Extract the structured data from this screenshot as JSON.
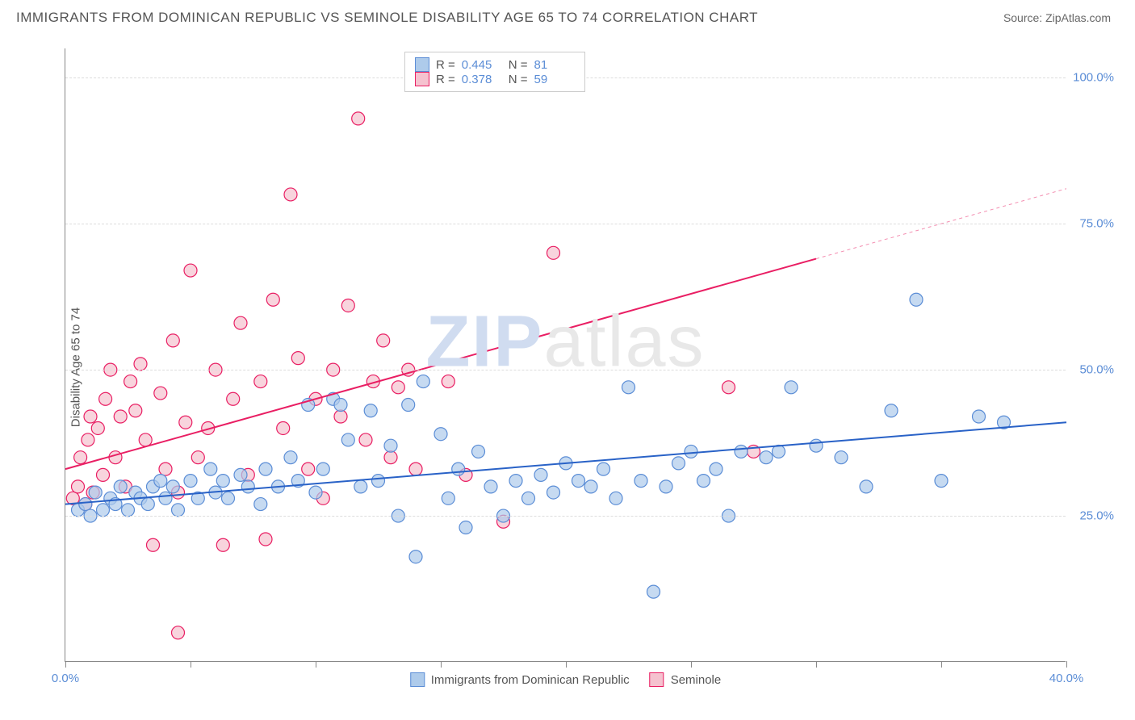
{
  "title": "IMMIGRANTS FROM DOMINICAN REPUBLIC VS SEMINOLE DISABILITY AGE 65 TO 74 CORRELATION CHART",
  "source_label": "Source:",
  "source_name": "ZipAtlas.com",
  "ylabel": "Disability Age 65 to 74",
  "watermark_bold": "ZIP",
  "watermark_rest": "atlas",
  "chart": {
    "type": "scatter",
    "xlim": [
      0,
      40
    ],
    "ylim": [
      0,
      105
    ],
    "xtick_positions": [
      0,
      5,
      10,
      15,
      20,
      25,
      30,
      35,
      40
    ],
    "xtick_labels": {
      "0": "0.0%",
      "40": "40.0%"
    },
    "ytick_values": [
      25,
      50,
      75,
      100
    ],
    "ytick_labels": [
      "25.0%",
      "50.0%",
      "75.0%",
      "100.0%"
    ],
    "grid_color": "#dddddd",
    "axis_color": "#888888",
    "background": "#ffffff",
    "marker_radius": 8,
    "marker_stroke_width": 1.2,
    "line_width": 2
  },
  "series": [
    {
      "name": "Immigrants from Dominican Republic",
      "fill": "#aecbeb",
      "stroke": "#5b8dd6",
      "line_color": "#2962c7",
      "R": "0.445",
      "N": "81",
      "trend": {
        "x1": 0,
        "y1": 27,
        "x2": 40,
        "y2": 41,
        "dash_from_x": null
      },
      "points": [
        [
          0.5,
          26
        ],
        [
          0.8,
          27
        ],
        [
          1.0,
          25
        ],
        [
          1.2,
          29
        ],
        [
          1.5,
          26
        ],
        [
          1.8,
          28
        ],
        [
          2.0,
          27
        ],
        [
          2.2,
          30
        ],
        [
          2.5,
          26
        ],
        [
          2.8,
          29
        ],
        [
          3.0,
          28
        ],
        [
          3.3,
          27
        ],
        [
          3.5,
          30
        ],
        [
          3.8,
          31
        ],
        [
          4.0,
          28
        ],
        [
          4.3,
          30
        ],
        [
          4.5,
          26
        ],
        [
          5.0,
          31
        ],
        [
          5.3,
          28
        ],
        [
          5.8,
          33
        ],
        [
          6.0,
          29
        ],
        [
          6.3,
          31
        ],
        [
          6.5,
          28
        ],
        [
          7.0,
          32
        ],
        [
          7.3,
          30
        ],
        [
          7.8,
          27
        ],
        [
          8.0,
          33
        ],
        [
          8.5,
          30
        ],
        [
          9.0,
          35
        ],
        [
          9.3,
          31
        ],
        [
          9.7,
          44
        ],
        [
          10.0,
          29
        ],
        [
          10.3,
          33
        ],
        [
          10.7,
          45
        ],
        [
          11.0,
          44
        ],
        [
          11.3,
          38
        ],
        [
          11.8,
          30
        ],
        [
          12.2,
          43
        ],
        [
          12.5,
          31
        ],
        [
          13.0,
          37
        ],
        [
          13.3,
          25
        ],
        [
          13.7,
          44
        ],
        [
          14.0,
          18
        ],
        [
          14.3,
          48
        ],
        [
          15.0,
          39
        ],
        [
          15.3,
          28
        ],
        [
          15.7,
          33
        ],
        [
          16.0,
          23
        ],
        [
          16.5,
          36
        ],
        [
          17.0,
          30
        ],
        [
          17.5,
          25
        ],
        [
          18.0,
          31
        ],
        [
          18.5,
          28
        ],
        [
          19.0,
          32
        ],
        [
          19.5,
          29
        ],
        [
          20.0,
          34
        ],
        [
          20.5,
          31
        ],
        [
          21.0,
          30
        ],
        [
          21.5,
          33
        ],
        [
          22.0,
          28
        ],
        [
          22.5,
          47
        ],
        [
          23.0,
          31
        ],
        [
          23.5,
          12
        ],
        [
          24.0,
          30
        ],
        [
          24.5,
          34
        ],
        [
          25.0,
          36
        ],
        [
          25.5,
          31
        ],
        [
          26.0,
          33
        ],
        [
          26.5,
          25
        ],
        [
          27.0,
          36
        ],
        [
          28.0,
          35
        ],
        [
          28.5,
          36
        ],
        [
          29.0,
          47
        ],
        [
          30.0,
          37
        ],
        [
          31.0,
          35
        ],
        [
          32.0,
          30
        ],
        [
          33.0,
          43
        ],
        [
          34.0,
          62
        ],
        [
          35.0,
          31
        ],
        [
          36.5,
          42
        ],
        [
          37.5,
          41
        ]
      ]
    },
    {
      "name": "Seminole",
      "fill": "#f5c2cf",
      "stroke": "#e91e63",
      "line_color": "#e91e63",
      "R": "0.378",
      "N": "59",
      "trend": {
        "x1": 0,
        "y1": 33,
        "x2": 40,
        "y2": 81,
        "dash_from_x": 30
      },
      "points": [
        [
          0.3,
          28
        ],
        [
          0.5,
          30
        ],
        [
          0.6,
          35
        ],
        [
          0.8,
          27
        ],
        [
          0.9,
          38
        ],
        [
          1.0,
          42
        ],
        [
          1.1,
          29
        ],
        [
          1.3,
          40
        ],
        [
          1.5,
          32
        ],
        [
          1.6,
          45
        ],
        [
          1.8,
          50
        ],
        [
          2.0,
          35
        ],
        [
          2.2,
          42
        ],
        [
          2.4,
          30
        ],
        [
          2.6,
          48
        ],
        [
          2.8,
          43
        ],
        [
          3.0,
          51
        ],
        [
          3.2,
          38
        ],
        [
          3.5,
          20
        ],
        [
          3.8,
          46
        ],
        [
          4.0,
          33
        ],
        [
          4.3,
          55
        ],
        [
          4.5,
          29
        ],
        [
          4.8,
          41
        ],
        [
          5.0,
          67
        ],
        [
          5.3,
          35
        ],
        [
          5.7,
          40
        ],
        [
          6.0,
          50
        ],
        [
          6.3,
          20
        ],
        [
          6.7,
          45
        ],
        [
          7.0,
          58
        ],
        [
          7.3,
          32
        ],
        [
          7.8,
          48
        ],
        [
          8.0,
          21
        ],
        [
          8.3,
          62
        ],
        [
          8.7,
          40
        ],
        [
          9.0,
          80
        ],
        [
          9.3,
          52
        ],
        [
          9.7,
          33
        ],
        [
          10.0,
          45
        ],
        [
          10.3,
          28
        ],
        [
          10.7,
          50
        ],
        [
          11.0,
          42
        ],
        [
          11.3,
          61
        ],
        [
          11.7,
          93
        ],
        [
          12.0,
          38
        ],
        [
          12.3,
          48
        ],
        [
          12.7,
          55
        ],
        [
          13.0,
          35
        ],
        [
          13.3,
          47
        ],
        [
          13.7,
          50
        ],
        [
          14.0,
          33
        ],
        [
          15.3,
          48
        ],
        [
          16.0,
          32
        ],
        [
          17.5,
          24
        ],
        [
          19.5,
          70
        ],
        [
          4.5,
          5
        ],
        [
          26.5,
          47
        ],
        [
          27.5,
          36
        ]
      ]
    }
  ],
  "legend_labels": {
    "R": "R =",
    "N": "N ="
  }
}
